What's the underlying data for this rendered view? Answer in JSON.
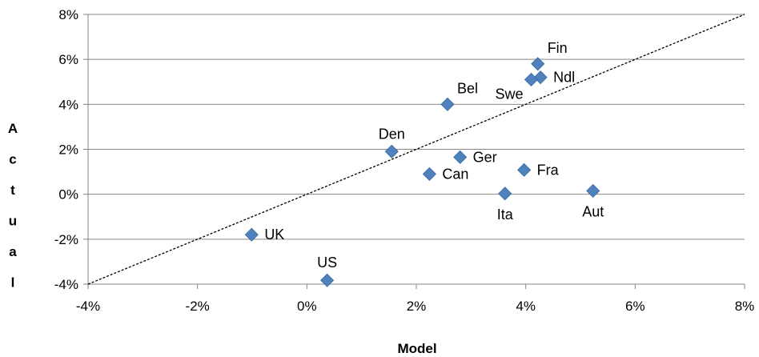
{
  "chart_data": {
    "type": "scatter",
    "title": "",
    "xlabel": "Model",
    "ylabel": "Actual",
    "xlim": [
      -0.04,
      0.08
    ],
    "ylim": [
      -0.04,
      0.08
    ],
    "x_ticks": [
      {
        "value": -0.04,
        "label": "-4%"
      },
      {
        "value": -0.02,
        "label": "-2%"
      },
      {
        "value": 0.0,
        "label": "0%"
      },
      {
        "value": 0.02,
        "label": "2%"
      },
      {
        "value": 0.04,
        "label": "4%"
      },
      {
        "value": 0.06,
        "label": "6%"
      },
      {
        "value": 0.08,
        "label": "8%"
      }
    ],
    "y_ticks": [
      {
        "value": -0.04,
        "label": "-4%"
      },
      {
        "value": -0.02,
        "label": "-2%"
      },
      {
        "value": 0.0,
        "label": "0%"
      },
      {
        "value": 0.02,
        "label": "2%"
      },
      {
        "value": 0.04,
        "label": "4%"
      },
      {
        "value": 0.06,
        "label": "6%"
      },
      {
        "value": 0.08,
        "label": "8%"
      }
    ],
    "grid": "horizontal",
    "reference_line": {
      "style": "dashed",
      "from": [
        -0.04,
        -0.04
      ],
      "to": [
        0.08,
        0.08
      ]
    },
    "marker": "diamond",
    "marker_color": "#4f81bd",
    "points": [
      {
        "label": "Fin",
        "x": 0.0422,
        "y": 0.058,
        "label_pos": "above-right"
      },
      {
        "label": "Ndl",
        "x": 0.0427,
        "y": 0.052,
        "label_pos": "right"
      },
      {
        "label": "Swe",
        "x": 0.041,
        "y": 0.051,
        "label_pos": "below-left"
      },
      {
        "label": "Bel",
        "x": 0.0257,
        "y": 0.04,
        "label_pos": "above-right"
      },
      {
        "label": "Den",
        "x": 0.0155,
        "y": 0.019,
        "label_pos": "above"
      },
      {
        "label": "Ger",
        "x": 0.028,
        "y": 0.0165,
        "label_pos": "right"
      },
      {
        "label": "Can",
        "x": 0.0224,
        "y": 0.009,
        "label_pos": "right"
      },
      {
        "label": "Fra",
        "x": 0.0397,
        "y": 0.0108,
        "label_pos": "right"
      },
      {
        "label": "Ita",
        "x": 0.0362,
        "y": 0.0003,
        "label_pos": "below"
      },
      {
        "label": "Aut",
        "x": 0.0523,
        "y": 0.0015,
        "label_pos": "below"
      },
      {
        "label": "UK",
        "x": -0.0101,
        "y": -0.018,
        "label_pos": "right"
      },
      {
        "label": "US",
        "x": 0.0037,
        "y": -0.0383,
        "label_pos": "above"
      }
    ]
  }
}
